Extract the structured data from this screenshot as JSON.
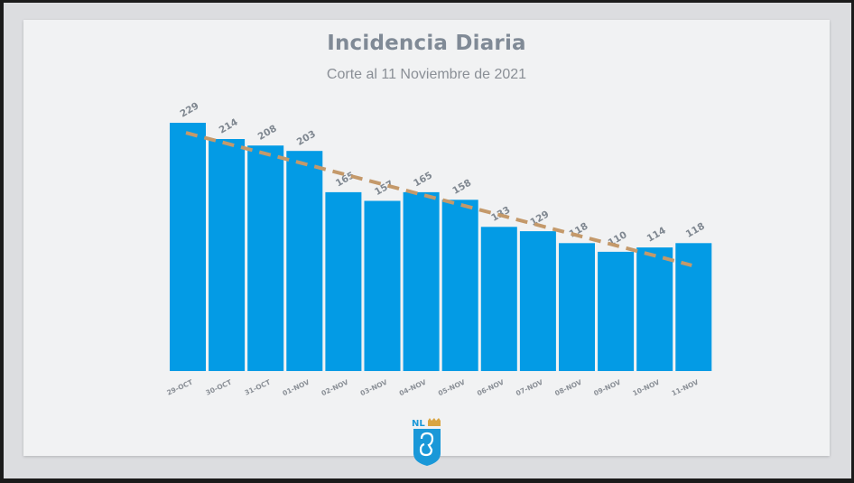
{
  "title": "Incidencia Diaria",
  "subtitle": "Corte al 11 Noviembre de 2021",
  "logo_text": "NL",
  "colors": {
    "bar": "#039be5",
    "trend": "#c4996a",
    "label": "#7f8790",
    "tick": "#8a8f96"
  },
  "chart_data": {
    "type": "bar",
    "title": "Incidencia Diaria",
    "subtitle": "Corte al 11 Noviembre de 2021",
    "categories": [
      "29-OCT",
      "30-OCT",
      "31-OCT",
      "01-NOV",
      "02-NOV",
      "03-NOV",
      "04-NOV",
      "05-NOV",
      "06-NOV",
      "07-NOV",
      "08-NOV",
      "09-NOV",
      "10-NOV",
      "11-NOV"
    ],
    "values": [
      229,
      214,
      208,
      203,
      165,
      157,
      165,
      158,
      133,
      129,
      118,
      110,
      114,
      118
    ],
    "ylim": [
      0,
      229
    ],
    "trendline": {
      "style": "dashed",
      "type": "linear"
    },
    "grid": false,
    "legend": "none",
    "xlabel": "",
    "ylabel": ""
  }
}
